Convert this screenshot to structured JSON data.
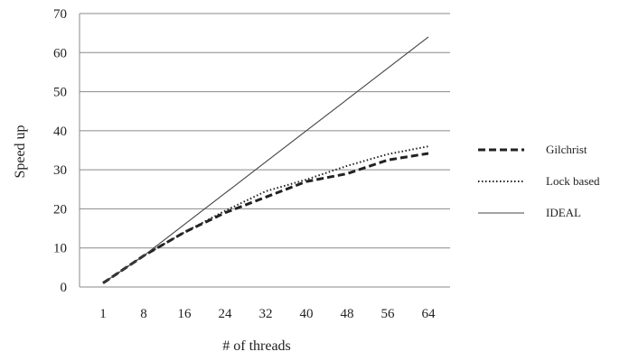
{
  "chart_data": {
    "type": "line",
    "title": "",
    "xlabel": "# of threads",
    "ylabel": "Speed up",
    "categories": [
      "1",
      "8",
      "16",
      "24",
      "32",
      "40",
      "48",
      "56",
      "64"
    ],
    "ylim": [
      0,
      70
    ],
    "yticks": [
      0,
      10,
      20,
      30,
      40,
      50,
      60,
      70
    ],
    "grid": "horizontal",
    "legend_position": "right",
    "series": [
      {
        "name": "Gilchrist",
        "values": [
          1,
          8,
          14,
          19,
          23,
          27,
          29,
          32.5,
          34.2
        ],
        "style": "dashed-bold",
        "color": "#222222"
      },
      {
        "name": "Lock based",
        "values": [
          1,
          8,
          14,
          19.5,
          24.5,
          27.5,
          31,
          34,
          36
        ],
        "style": "dotted",
        "color": "#222222"
      },
      {
        "name": "IDEAL",
        "values": [
          1,
          8,
          16,
          24,
          32,
          40,
          48,
          56,
          64
        ],
        "style": "solid-thin",
        "color": "#444444"
      }
    ]
  }
}
